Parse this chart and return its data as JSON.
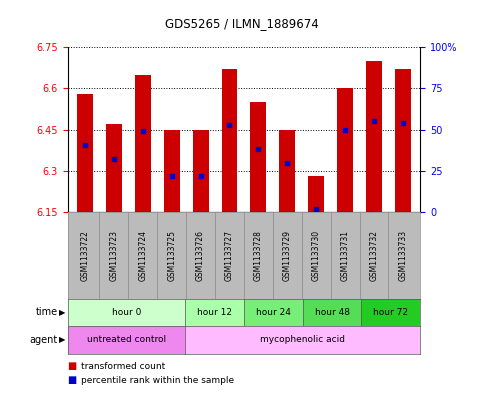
{
  "title": "GDS5265 / ILMN_1889674",
  "samples": [
    "GSM1133722",
    "GSM1133723",
    "GSM1133724",
    "GSM1133725",
    "GSM1133726",
    "GSM1133727",
    "GSM1133728",
    "GSM1133729",
    "GSM1133730",
    "GSM1133731",
    "GSM1133732",
    "GSM1133733"
  ],
  "bar_tops": [
    6.58,
    6.47,
    6.65,
    6.45,
    6.45,
    6.67,
    6.55,
    6.45,
    6.28,
    6.6,
    6.7,
    6.67
  ],
  "bar_bottom": 6.15,
  "percentile_vals": [
    0.41,
    0.32,
    0.49,
    0.22,
    0.22,
    0.53,
    0.38,
    0.3,
    0.02,
    0.5,
    0.55,
    0.54
  ],
  "ylim_left": [
    6.15,
    6.75
  ],
  "ylim_right": [
    0,
    100
  ],
  "yticks_left": [
    6.15,
    6.3,
    6.45,
    6.6,
    6.75
  ],
  "ytick_labels_left": [
    "6.15",
    "6.3",
    "6.45",
    "6.6",
    "6.75"
  ],
  "yticks_right": [
    0,
    25,
    50,
    75,
    100
  ],
  "ytick_labels_right": [
    "0",
    "25",
    "50",
    "75",
    "100%"
  ],
  "bar_color": "#cc0000",
  "percentile_color": "#0000cc",
  "time_groups": [
    {
      "label": "hour 0",
      "start": 0,
      "end": 4,
      "color": "#ccffcc"
    },
    {
      "label": "hour 12",
      "start": 4,
      "end": 6,
      "color": "#aaffaa"
    },
    {
      "label": "hour 24",
      "start": 6,
      "end": 8,
      "color": "#77ee77"
    },
    {
      "label": "hour 48",
      "start": 8,
      "end": 10,
      "color": "#55dd55"
    },
    {
      "label": "hour 72",
      "start": 10,
      "end": 12,
      "color": "#22cc22"
    }
  ],
  "agent_groups": [
    {
      "label": "untreated control",
      "start": 0,
      "end": 4,
      "color": "#ee88ee"
    },
    {
      "label": "mycophenolic acid",
      "start": 4,
      "end": 12,
      "color": "#ffbbff"
    }
  ],
  "header_bg": "#bbbbbb",
  "fig_bg": "#ffffff",
  "bar_width": 0.55
}
